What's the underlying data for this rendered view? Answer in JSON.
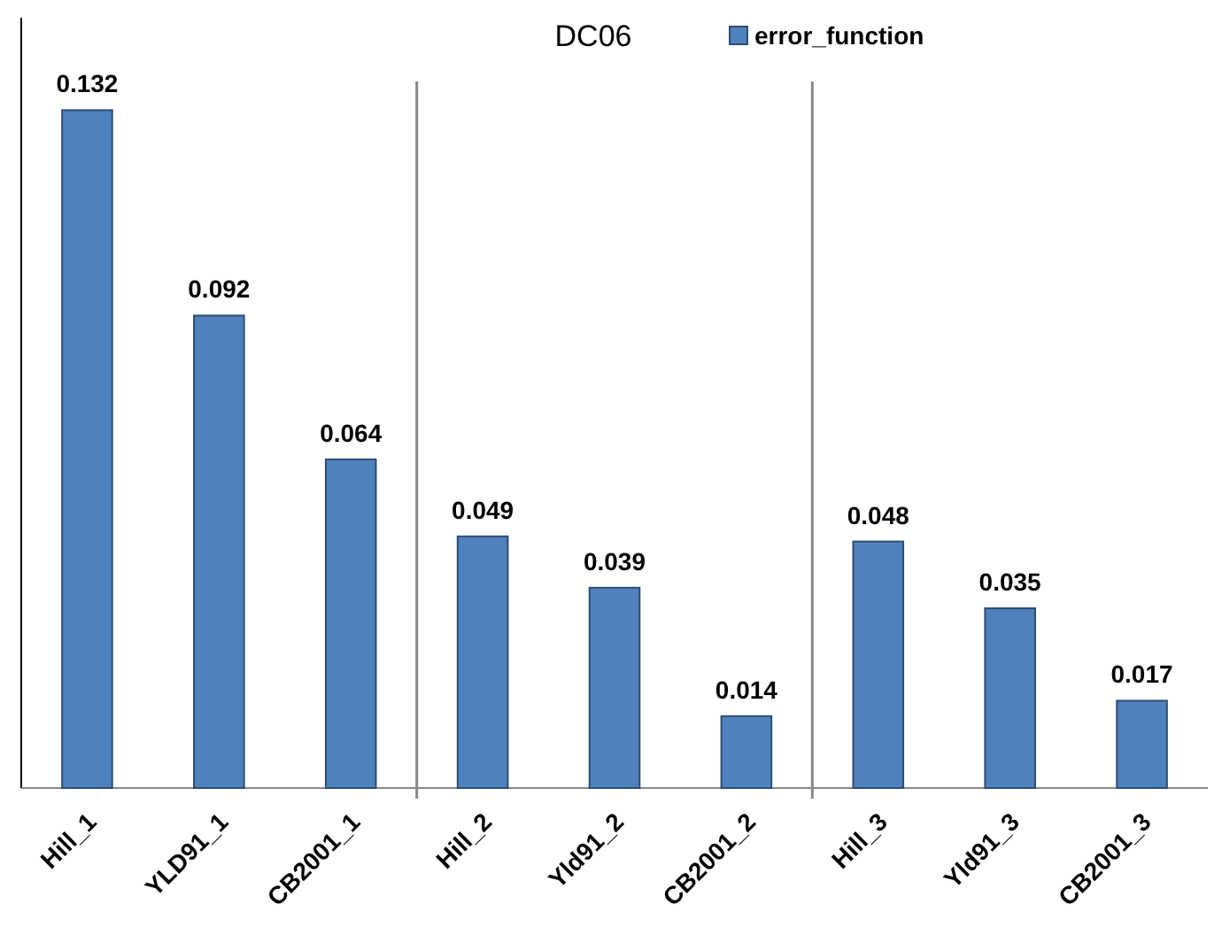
{
  "chart_data": {
    "type": "bar",
    "title": "DC06",
    "categories": [
      "Hill_1",
      "YLD91_1",
      "CB2001_1",
      "Hill_2",
      "Yld91_2",
      "CB2001_2",
      "Hill_3",
      "Yld91_3",
      "CB2001_3"
    ],
    "series": [
      {
        "name": "error_function",
        "color": "#4f81bd",
        "values": [
          0.132,
          0.092,
          0.064,
          0.049,
          0.039,
          0.014,
          0.048,
          0.035,
          0.017
        ]
      }
    ],
    "ylim": [
      0,
      0.15
    ],
    "data_labels": true,
    "legend": "top",
    "grid": false,
    "tick_labels": "x"
  }
}
